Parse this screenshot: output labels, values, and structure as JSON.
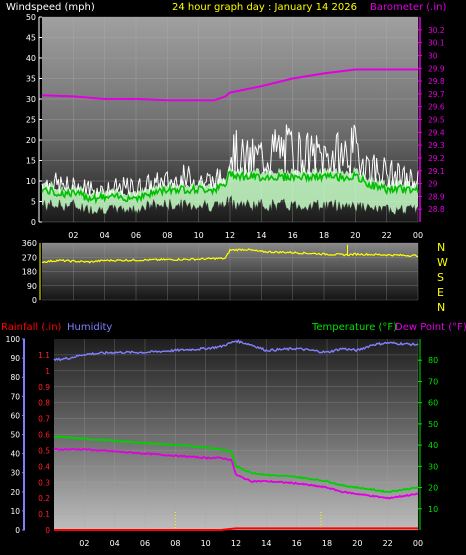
{
  "header": {
    "wind_title": "Windspeed (mph)",
    "date_title": "24 hour graph day : January 14 2026",
    "baro_title": "Barometer (.in)"
  },
  "compass": [
    "N",
    "W",
    "S",
    "E",
    "N"
  ],
  "bottom_header": {
    "rain_title": "Rainfall (.in)",
    "humidity_title": "Humidity",
    "temp_title": "Temperature (°F)",
    "dew_title": "Dew Point (°F)"
  },
  "colors": {
    "wind_gust": "#ffffff",
    "wind_avg_fill": "#c8ffc8",
    "wind_avg_line": "#00c000",
    "barometer": "#e000e0",
    "direction": "#ffff00",
    "humidity": "#8080ff",
    "temperature": "#00d000",
    "dew_point": "#e000e0",
    "rainfall": "#ff0000",
    "title_white": "#ffffff",
    "title_yellow": "#ffff00"
  },
  "chart_data": [
    {
      "type": "line",
      "panel": "wind_barometer",
      "x_ticks": [
        "02",
        "04",
        "06",
        "08",
        "10",
        "12",
        "14",
        "16",
        "18",
        "20",
        "22",
        "00"
      ],
      "x_range_hours": [
        0,
        24
      ],
      "ylim_left": [
        0,
        50
      ],
      "y_ticks_left": [
        0,
        5,
        10,
        15,
        20,
        25,
        30,
        35,
        40,
        45,
        50
      ],
      "ylim_right": [
        28.7,
        30.3
      ],
      "y_ticks_right": [
        "28.8",
        "28.9",
        "29",
        "29.1",
        "29.2",
        "29.3",
        "29.4",
        "29.5",
        "29.6",
        "29.7",
        "29.8",
        "29.9",
        "30",
        "30.1",
        "30.2"
      ],
      "series": [
        {
          "name": "Windspeed",
          "axis": "left",
          "x": [
            0,
            1,
            2,
            3,
            4,
            5,
            6,
            7,
            8,
            9,
            10,
            11,
            11.7,
            12,
            13,
            14,
            15,
            16,
            17,
            18,
            19,
            20,
            21,
            22,
            23,
            24
          ],
          "gust_high": [
            13,
            12,
            11,
            11,
            10,
            11,
            11,
            12,
            13,
            14,
            14,
            13,
            14,
            24,
            20,
            22,
            24,
            24,
            22,
            22,
            22,
            24,
            18,
            16,
            14,
            13
          ],
          "avg": [
            8,
            7,
            7,
            6,
            6,
            6,
            6,
            7,
            8,
            8,
            8,
            8,
            9,
            12,
            11,
            11,
            11,
            11,
            11,
            11,
            11,
            11,
            9,
            8,
            8,
            8
          ],
          "low": [
            4,
            4,
            4,
            3,
            3,
            3,
            3,
            4,
            4,
            4,
            4,
            4,
            4,
            5,
            4,
            4,
            4,
            4,
            4,
            4,
            4,
            4,
            3,
            3,
            3,
            3
          ]
        },
        {
          "name": "Barometer",
          "axis": "right",
          "x": [
            0,
            2,
            4,
            6,
            8,
            10,
            11,
            11.7,
            12,
            14,
            16,
            18,
            20,
            22,
            24
          ],
          "values": [
            29.69,
            29.68,
            29.66,
            29.66,
            29.65,
            29.65,
            29.65,
            29.68,
            29.71,
            29.76,
            29.82,
            29.86,
            29.89,
            29.89,
            29.89
          ]
        }
      ]
    },
    {
      "type": "line",
      "panel": "wind_direction",
      "ylim": [
        0,
        360
      ],
      "y_ticks": [
        0,
        90,
        180,
        270,
        360
      ],
      "series": [
        {
          "name": "Wind Direction",
          "x": [
            0,
            1,
            2,
            3,
            4,
            6,
            8,
            10,
            11,
            11.7,
            12,
            13,
            14,
            16,
            18,
            19.5,
            20,
            22,
            24
          ],
          "values": [
            240,
            250,
            245,
            240,
            250,
            252,
            255,
            258,
            262,
            262,
            315,
            320,
            305,
            300,
            290,
            285,
            290,
            285,
            280
          ]
        }
      ]
    },
    {
      "type": "line",
      "panel": "temperature_humidity_rain",
      "x_ticks": [
        "02",
        "04",
        "06",
        "08",
        "10",
        "12",
        "14",
        "16",
        "18",
        "20",
        "22",
        "00"
      ],
      "ylim_left_humidity": [
        0,
        100
      ],
      "y_ticks_humidity": [
        0,
        10,
        20,
        30,
        40,
        50,
        60,
        70,
        80,
        90,
        100
      ],
      "ylim_left_rain": [
        0,
        1.2
      ],
      "y_ticks_rain": [
        "0",
        "0.1",
        "0.2",
        "0.3",
        "0.4",
        "0.5",
        "0.6",
        "0.7",
        "0.8",
        "0.9",
        "1",
        "1.1"
      ],
      "ylim_right": [
        0,
        90
      ],
      "y_ticks_right": [
        10,
        20,
        30,
        40,
        50,
        60,
        70,
        80
      ],
      "series": [
        {
          "name": "Humidity",
          "axis": "humidity",
          "x": [
            0,
            1,
            2,
            4,
            6,
            8,
            10,
            11,
            12,
            13,
            14,
            16,
            18,
            19,
            20,
            21,
            22,
            24
          ],
          "values": [
            89,
            90,
            92,
            93,
            93,
            94,
            95,
            96,
            99,
            97,
            94,
            95,
            93,
            95,
            94,
            97,
            98,
            97
          ]
        },
        {
          "name": "Temperature",
          "axis": "right",
          "x": [
            0,
            2,
            4,
            6,
            8,
            10,
            11,
            11.7,
            12,
            13,
            14,
            16,
            18,
            19,
            20,
            21,
            22,
            23,
            24
          ],
          "values": [
            44,
            43,
            42,
            41,
            40,
            39,
            38,
            37,
            30,
            27,
            26,
            25,
            23,
            21,
            20,
            19,
            18,
            19,
            20
          ]
        },
        {
          "name": "Dew Point",
          "axis": "right",
          "x": [
            0,
            2,
            4,
            6,
            8,
            10,
            11,
            11.7,
            12,
            13,
            14,
            16,
            18,
            19,
            20,
            21,
            22,
            23,
            24
          ],
          "values": [
            38,
            38,
            37,
            36,
            35,
            34,
            34,
            33,
            26,
            23,
            23,
            22,
            20,
            18,
            17,
            16,
            15,
            16,
            17
          ]
        },
        {
          "name": "Rainfall",
          "axis": "rain",
          "x": [
            0,
            4,
            8,
            11,
            12,
            16,
            20,
            24
          ],
          "values": [
            0,
            0,
            0,
            0,
            0.01,
            0.01,
            0.01,
            0.01
          ]
        }
      ]
    }
  ]
}
